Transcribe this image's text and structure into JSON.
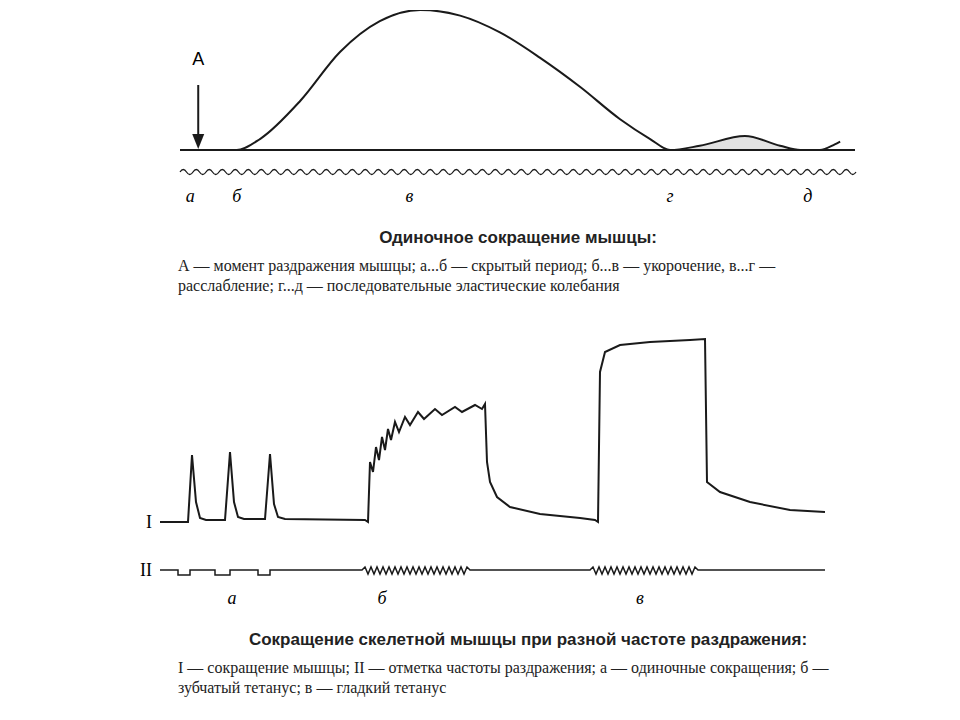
{
  "chart_data": [
    {
      "type": "line",
      "title": "Одиночное сокращение мышцы:",
      "subtitle": "А — момент раздражения мышцы; а...б — скрытый период; б...в — укорочение, в...г — расслабление; г...д — последовательные эластические колебания",
      "x": [
        0,
        8.4,
        11.9,
        17.8,
        23.7,
        29.6,
        35.6,
        41.5,
        47.4,
        53.3,
        59.3,
        65.2,
        69.6,
        72.6,
        77,
        83.7,
        88.9,
        91.9,
        94.8,
        97,
        97.8
      ],
      "values": [
        0,
        0,
        8,
        35,
        70,
        92,
        100,
        96,
        84,
        66,
        45,
        22,
        8,
        0,
        3,
        10,
        3,
        0,
        0,
        4,
        6
      ],
      "xlim": [
        0,
        100
      ],
      "ylim": [
        0,
        100
      ],
      "tick_labels": false,
      "color": "#1a1a1a",
      "annotations": [
        {
          "x": 2.7,
          "text": "А",
          "marker": "arrow"
        },
        {
          "x": 1.5,
          "text": "а"
        },
        {
          "x": 8.4,
          "text": "б"
        },
        {
          "x": 34,
          "text": "в"
        },
        {
          "x": 72.6,
          "text": "г"
        },
        {
          "x": 93,
          "text": "д"
        }
      ]
    },
    {
      "type": "line",
      "title": "Сокращение скелетной мышцы при разной частоте раздражения:",
      "subtitle": "I — сокращение мышцы; II — отметка частоты раздражения; а — одиночные сокращения; б — зубчатый тетанус; в — гладкий тетанус",
      "xlim": [
        0,
        665
      ],
      "ylim": [
        -80,
        200
      ],
      "tick_labels": false,
      "series": [
        {
          "name": "I",
          "color": "#1a1a1a",
          "x": [
            0,
            28,
            32,
            36,
            40,
            46,
            65,
            70,
            74,
            78,
            84,
            105,
            110,
            114,
            118,
            125,
            205,
            208,
            210,
            213,
            216,
            219,
            222,
            225,
            228,
            231,
            235,
            239,
            245,
            250,
            258,
            264,
            275,
            282,
            295,
            302,
            315,
            322,
            325,
            327,
            330,
            337,
            350,
            380,
            420,
            435,
            438,
            440,
            445,
            460,
            490,
            530,
            545,
            547,
            560,
            590,
            630,
            665
          ],
          "values": [
            0,
            0,
            67,
            20,
            4,
            2,
            2,
            70,
            20,
            5,
            3,
            3,
            68,
            18,
            5,
            3,
            2,
            0,
            60,
            50,
            75,
            62,
            85,
            72,
            93,
            82,
            100,
            90,
            105,
            97,
            110,
            103,
            113,
            107,
            115,
            110,
            117,
            113,
            118,
            60,
            40,
            25,
            15,
            8,
            4,
            2,
            0,
            150,
            170,
            177,
            180,
            182,
            183,
            40,
            30,
            20,
            12,
            10
          ]
        },
        {
          "name": "II",
          "color": "#1a1a1a",
          "x": [
            0,
            18,
            18,
            30,
            30,
            55,
            55,
            70,
            70,
            98,
            98,
            110,
            110,
            202,
            205,
            208,
            211,
            214,
            217,
            220,
            223,
            226,
            229,
            232,
            235,
            238,
            241,
            244,
            247,
            250,
            253,
            256,
            259,
            262,
            265,
            268,
            271,
            274,
            277,
            280,
            283,
            286,
            289,
            292,
            295,
            298,
            301,
            304,
            307,
            310,
            430,
            433,
            436,
            439,
            442,
            445,
            448,
            451,
            454,
            457,
            460,
            463,
            466,
            469,
            472,
            475,
            478,
            481,
            484,
            487,
            490,
            493,
            496,
            499,
            502,
            505,
            508,
            511,
            514,
            517,
            520,
            523,
            526,
            529,
            532,
            535,
            538,
            665
          ],
          "values": [
            -48,
            -48,
            -53,
            -53,
            -48,
            -48,
            -53,
            -53,
            -48,
            -48,
            -53,
            -53,
            -48,
            -48,
            -45,
            -52,
            -45,
            -52,
            -45,
            -52,
            -45,
            -52,
            -45,
            -52,
            -45,
            -52,
            -45,
            -52,
            -45,
            -52,
            -45,
            -52,
            -45,
            -52,
            -45,
            -52,
            -45,
            -52,
            -45,
            -52,
            -45,
            -52,
            -45,
            -52,
            -45,
            -52,
            -45,
            -52,
            -45,
            -48,
            -48,
            -45,
            -52,
            -45,
            -52,
            -45,
            -52,
            -45,
            -52,
            -45,
            -52,
            -45,
            -52,
            -45,
            -52,
            -45,
            -52,
            -45,
            -52,
            -45,
            -52,
            -45,
            -52,
            -45,
            -52,
            -45,
            -52,
            -45,
            -52,
            -45,
            -52,
            -45,
            -52,
            -45,
            -52,
            -45,
            -48,
            -48
          ]
        }
      ],
      "annotations": [
        {
          "x": 72,
          "text": "а"
        },
        {
          "x": 222,
          "text": "б"
        },
        {
          "x": 480,
          "text": "в"
        }
      ]
    }
  ]
}
